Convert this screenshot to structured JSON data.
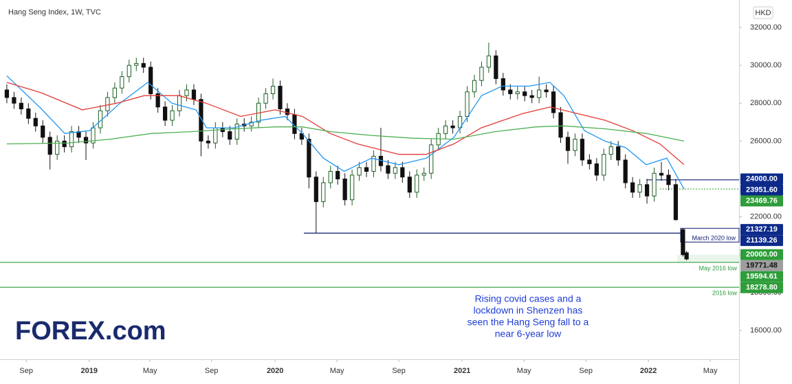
{
  "chart_data": {
    "type": "candlestick",
    "title": "Hang Seng Index, 1W, TVC",
    "currency": "HKD",
    "logo": "FOREX.com",
    "up_color": "#1b5e20",
    "down_color": "#111111",
    "xlim": [
      -1.9,
      203.6
    ],
    "ylim": [
      14476,
      33451
    ],
    "xticks": [
      {
        "value": 5.4,
        "label": "Sep"
      },
      {
        "value": 22.9,
        "label": "2019"
      },
      {
        "value": 39.8,
        "label": "May"
      },
      {
        "value": 56.9,
        "label": "Sep"
      },
      {
        "value": 74.6,
        "label": "2020"
      },
      {
        "value": 91.8,
        "label": "May"
      },
      {
        "value": 109,
        "label": "Sep"
      },
      {
        "value": 126.6,
        "label": "2021"
      },
      {
        "value": 143.8,
        "label": "May"
      },
      {
        "value": 161,
        "label": "Sep"
      },
      {
        "value": 178.4,
        "label": "2022"
      },
      {
        "value": 195.6,
        "label": "May"
      }
    ],
    "yticks": [
      {
        "value": 16000,
        "label": "16000.00"
      },
      {
        "value": 18000,
        "label": "18000.00"
      },
      {
        "value": 20000,
        "label": "20000.00"
      },
      {
        "value": 22000,
        "label": "22000.00"
      },
      {
        "value": 24000,
        "label": "24000.00"
      },
      {
        "value": 26000,
        "label": "26000.00"
      },
      {
        "value": 28000,
        "label": "28000.00"
      },
      {
        "value": 30000,
        "label": "30000.00"
      },
      {
        "value": 32000,
        "label": "32000.00"
      }
    ],
    "candles": {
      "x": [
        0,
        2,
        4,
        6,
        8,
        10,
        12,
        14,
        16,
        18,
        20,
        22,
        24,
        26,
        28,
        30,
        32,
        34,
        36,
        38,
        40,
        42,
        44,
        46,
        48,
        50,
        52,
        54,
        56,
        58,
        60,
        62,
        64,
        66,
        68,
        70,
        72,
        74,
        76,
        78,
        80,
        82,
        84,
        86,
        88,
        90,
        92,
        94,
        96,
        98,
        100,
        102,
        104,
        106,
        108,
        110,
        112,
        114,
        116,
        118,
        120,
        122,
        124,
        126,
        128,
        130,
        132,
        134,
        136,
        138,
        140,
        142,
        144,
        146,
        148,
        150,
        152,
        154,
        156,
        158,
        160,
        162,
        164,
        166,
        168,
        170,
        172,
        174,
        176,
        178,
        180,
        182,
        184,
        186,
        188,
        189
      ],
      "ohlc": [
        [
          28700,
          29000,
          28000,
          28300
        ],
        [
          28300,
          28600,
          27700,
          28000
        ],
        [
          28000,
          28300,
          27400,
          27700
        ],
        [
          27700,
          28000,
          26900,
          27200
        ],
        [
          27200,
          27500,
          26500,
          26800
        ],
        [
          26800,
          27100,
          25900,
          26200
        ],
        [
          26200,
          26500,
          24500,
          25300
        ],
        [
          25300,
          26300,
          25000,
          26000
        ],
        [
          26000,
          26300,
          25400,
          25700
        ],
        [
          25700,
          26800,
          25400,
          26500
        ],
        [
          26500,
          26800,
          25900,
          26200
        ],
        [
          26200,
          26500,
          25000,
          25900
        ],
        [
          25900,
          27000,
          25600,
          26700
        ],
        [
          26700,
          27900,
          26400,
          27600
        ],
        [
          27600,
          28600,
          27300,
          28300
        ],
        [
          28300,
          29100,
          28000,
          28800
        ],
        [
          28800,
          29700,
          28500,
          29400
        ],
        [
          29400,
          30300,
          29100,
          30000
        ],
        [
          30000,
          30400,
          29700,
          30100
        ],
        [
          30100,
          30400,
          29600,
          29900
        ],
        [
          29900,
          30200,
          28200,
          28500
        ],
        [
          28500,
          28800,
          27500,
          27800
        ],
        [
          27800,
          28100,
          26800,
          27100
        ],
        [
          27100,
          27900,
          26800,
          27600
        ],
        [
          27600,
          28700,
          27300,
          28400
        ],
        [
          28400,
          29000,
          28100,
          28700
        ],
        [
          28700,
          29000,
          27900,
          28200
        ],
        [
          28200,
          28500,
          25200,
          26000
        ],
        [
          26000,
          26300,
          25600,
          25900
        ],
        [
          25900,
          27000,
          25600,
          26700
        ],
        [
          26700,
          27000,
          26200,
          26500
        ],
        [
          26500,
          26800,
          25800,
          26100
        ],
        [
          26100,
          27200,
          25800,
          26900
        ],
        [
          26900,
          27200,
          26500,
          26800
        ],
        [
          26800,
          27300,
          26500,
          27000
        ],
        [
          27000,
          28300,
          26700,
          28000
        ],
        [
          28000,
          28800,
          27700,
          28500
        ],
        [
          28500,
          29300,
          28200,
          28900
        ],
        [
          28900,
          29200,
          27400,
          27700
        ],
        [
          27700,
          28000,
          27100,
          27400
        ],
        [
          27400,
          27700,
          26100,
          26400
        ],
        [
          26400,
          26700,
          25800,
          26100
        ],
        [
          26100,
          26400,
          23500,
          24100
        ],
        [
          24100,
          24400,
          21139.26,
          22800
        ],
        [
          22800,
          24100,
          22500,
          23800
        ],
        [
          23800,
          24700,
          23500,
          24400
        ],
        [
          24400,
          24700,
          23700,
          24000
        ],
        [
          24000,
          24300,
          22600,
          22900
        ],
        [
          22900,
          24500,
          22600,
          24200
        ],
        [
          24200,
          24900,
          23900,
          24600
        ],
        [
          24600,
          24900,
          24100,
          24400
        ],
        [
          24400,
          25500,
          24100,
          25200
        ],
        [
          25200,
          26700,
          24400,
          24700
        ],
        [
          24700,
          25000,
          24000,
          24300
        ],
        [
          24300,
          24900,
          24000,
          24600
        ],
        [
          24600,
          24900,
          23800,
          24100
        ],
        [
          24100,
          24400,
          23000,
          23300
        ],
        [
          23300,
          24500,
          23000,
          24200
        ],
        [
          24200,
          24600,
          23900,
          24300
        ],
        [
          24300,
          26100,
          24000,
          25800
        ],
        [
          25800,
          26700,
          25500,
          26400
        ],
        [
          26400,
          27100,
          26100,
          26800
        ],
        [
          26800,
          27100,
          26400,
          26700
        ],
        [
          26700,
          27600,
          26400,
          27300
        ],
        [
          27300,
          28900,
          27000,
          28600
        ],
        [
          28600,
          29500,
          28300,
          29200
        ],
        [
          29200,
          30200,
          28900,
          29900
        ],
        [
          29900,
          31200,
          29600,
          30500
        ],
        [
          30500,
          30800,
          29000,
          29300
        ],
        [
          29300,
          29600,
          28400,
          28700
        ],
        [
          28700,
          29000,
          28200,
          28500
        ],
        [
          28500,
          28900,
          28200,
          28600
        ],
        [
          28600,
          28900,
          28100,
          28400
        ],
        [
          28400,
          28700,
          28000,
          28300
        ],
        [
          28300,
          29400,
          28000,
          28700
        ],
        [
          28700,
          29000,
          28300,
          28600
        ],
        [
          28600,
          28900,
          27200,
          27500
        ],
        [
          27500,
          27800,
          25900,
          26200
        ],
        [
          26200,
          26500,
          24800,
          25500
        ],
        [
          25500,
          26400,
          25200,
          26100
        ],
        [
          26100,
          26400,
          24700,
          25000
        ],
        [
          25000,
          25300,
          24500,
          24800
        ],
        [
          24800,
          25100,
          23900,
          24200
        ],
        [
          24200,
          25600,
          23900,
          25300
        ],
        [
          25300,
          26000,
          25000,
          25700
        ],
        [
          25700,
          26000,
          24700,
          25000
        ],
        [
          25000,
          25300,
          23500,
          23800
        ],
        [
          23800,
          24100,
          23000,
          23300
        ],
        [
          23300,
          24000,
          23000,
          23700
        ],
        [
          23700,
          24000,
          22700,
          23100
        ],
        [
          23100,
          24600,
          22800,
          24300
        ],
        [
          24300,
          24900,
          23900,
          24200
        ],
        [
          24200,
          24500,
          23400,
          23700
        ],
        [
          23700,
          24000,
          21800,
          21850
        ],
        [
          21327.19,
          21400,
          19900,
          20000
        ],
        [
          20100,
          20200,
          19700,
          19771.48
        ]
      ]
    },
    "series": [
      {
        "color": "#2196f3",
        "x": [
          0,
          9.6,
          16.1,
          23.0,
          31.5,
          39.2,
          45.9,
          52.6,
          55.5,
          63.1,
          70.7,
          77.4,
          82.2,
          88.0,
          93.8,
          101.4,
          109.0,
          116.7,
          124.3,
          132.0,
          137.7,
          145.3,
          151.0,
          154.9,
          160.6,
          166.3,
          172.1,
          177.8,
          183.5,
          188.3
        ],
        "values": [
          29450,
          27700,
          26400,
          26550,
          28000,
          29100,
          28000,
          27650,
          26700,
          26700,
          27100,
          27300,
          26400,
          25100,
          24400,
          25100,
          24750,
          25100,
          26200,
          28400,
          28900,
          28900,
          29100,
          28400,
          26550,
          26000,
          25650,
          24750,
          25100,
          23470
        ]
      },
      {
        "color": "#e53935",
        "x": [
          0,
          9.6,
          21.0,
          30.6,
          38.2,
          47.8,
          55.4,
          65.0,
          74.6,
          82.2,
          89.9,
          97.5,
          109.0,
          116.6,
          124.3,
          131.9,
          143.4,
          151.1,
          158.7,
          166.3,
          174.0,
          181.6,
          188.3
        ],
        "values": [
          29100,
          28550,
          27650,
          28000,
          28400,
          28400,
          28000,
          27300,
          27650,
          27300,
          26400,
          25850,
          25300,
          25300,
          25850,
          26700,
          27450,
          27800,
          27450,
          27100,
          26550,
          25850,
          24750
        ]
      },
      {
        "color": "#4caf50",
        "x": [
          0,
          17.2,
          28.7,
          40.2,
          51.6,
          63.1,
          74.6,
          82.2,
          89.9,
          101.3,
          112.8,
          124.3,
          135.8,
          147.2,
          154.9,
          166.3,
          177.8,
          188.3
        ],
        "values": [
          25850,
          25900,
          26100,
          26400,
          26500,
          26650,
          26750,
          26750,
          26500,
          26300,
          26150,
          26100,
          26500,
          26750,
          26800,
          26650,
          26400,
          26000
        ]
      }
    ],
    "levels": [
      {
        "value": 23951.6,
        "from": 177.8,
        "color": "#0d1b6e",
        "dash": false
      },
      {
        "value": 23469.76,
        "from": 181.6,
        "color": "#4caf50",
        "dash": true
      },
      {
        "value": 21139.26,
        "from": 82.6,
        "color": "#0d1b6e",
        "dash": false,
        "label": "March 2020 low"
      },
      {
        "value": 19594.61,
        "from": -1.9,
        "color": "#2e9d3a",
        "dash": false,
        "label": "May 2016 low"
      },
      {
        "value": 18278.8,
        "from": -1.9,
        "color": "#2e9d3a",
        "dash": false,
        "label": "2016 low"
      }
    ],
    "price_labels": [
      {
        "value": 24000,
        "label": "24000.00",
        "color": "#0d2a8a",
        "text_color": "#ffffff"
      },
      {
        "value": 23951.6,
        "label": "23951.60",
        "color": "#0d2a8a",
        "text_color": "#ffffff"
      },
      {
        "value": 23469.76,
        "label": "23469.76",
        "color": "#2e9d3a",
        "text_color": "#ffffff"
      },
      {
        "value": 21327.19,
        "label": "21327.19",
        "color": "#0d2a8a",
        "text_color": "#ffffff"
      },
      {
        "value": 21139.26,
        "label": "21139.26",
        "color": "#0d2a8a",
        "text_color": "#ffffff"
      },
      {
        "value": 20000,
        "label": "20000.00",
        "color": "#2e9d3a",
        "text_color": "#ffffff"
      },
      {
        "value": 19771.48,
        "label": "19771.48",
        "color": "#9e9e9e",
        "text_color": "#111111"
      },
      {
        "value": 19594.61,
        "label": "19594.61",
        "color": "#2e9d3a",
        "text_color": "#ffffff"
      },
      {
        "value": 18278.8,
        "label": "18278.80",
        "color": "#2e9d3a",
        "text_color": "#ffffff"
      }
    ],
    "annotation": [
      "Rising covid cases and a",
      "lockdown in Shenzen has",
      "seen the Hang Seng fall to a",
      "near 6-year low"
    ]
  }
}
